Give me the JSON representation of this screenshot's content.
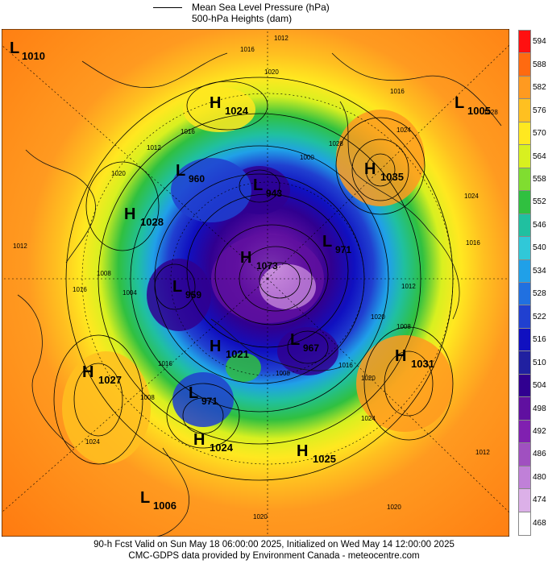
{
  "legend": {
    "line1": "Mean Sea Level Pressure (hPa)",
    "line2": "500-hPa Heights (dam)"
  },
  "colorbar": {
    "labels": [
      "594",
      "588",
      "582",
      "576",
      "570",
      "564",
      "558",
      "552",
      "546",
      "540",
      "534",
      "528",
      "522",
      "516",
      "510",
      "504",
      "498",
      "492",
      "486",
      "480",
      "474",
      "468"
    ],
    "colors": [
      "#ff1010",
      "#ff6a10",
      "#ff9a20",
      "#ffc020",
      "#ffe820",
      "#d8f020",
      "#80dd30",
      "#30c040",
      "#20c0a0",
      "#30c8d8",
      "#20a0e8",
      "#2070e0",
      "#2040d0",
      "#1010c0",
      "#2020a0",
      "#300090",
      "#6010a0",
      "#8020b0",
      "#a050c0",
      "#c080d8",
      "#dcb0e8",
      "#ffffff"
    ]
  },
  "systems": [
    {
      "type": "L",
      "value": "1010"
    },
    {
      "type": "H",
      "value": "1024"
    },
    {
      "type": "L",
      "value": "1005"
    },
    {
      "type": "H",
      "value": "1035"
    },
    {
      "type": "L",
      "value": "960"
    },
    {
      "type": "L",
      "value": "943"
    },
    {
      "type": "H",
      "value": "1028"
    },
    {
      "type": "L",
      "value": "971"
    },
    {
      "type": "H",
      "value": "1073"
    },
    {
      "type": "L",
      "value": "959"
    },
    {
      "type": "L",
      "value": "967"
    },
    {
      "type": "H",
      "value": "1021"
    },
    {
      "type": "H",
      "value": "1027"
    },
    {
      "type": "H",
      "value": "1031"
    },
    {
      "type": "L",
      "value": "971"
    },
    {
      "type": "H",
      "value": "1024"
    },
    {
      "type": "H",
      "value": "1025"
    },
    {
      "type": "L",
      "value": "1006"
    }
  ],
  "contour_labels": [
    "1012",
    "1016",
    "1020",
    "1016",
    "1012",
    "1024",
    "1028",
    "1016",
    "1012",
    "1020",
    "1024",
    "1000",
    "1016",
    "1028",
    "1012",
    "1008",
    "1004",
    "1016",
    "1020",
    "1008",
    "1016",
    "1020",
    "1024",
    "1008",
    "1016",
    "1024",
    "1012",
    "1020",
    "1008",
    "1020"
  ],
  "footer": {
    "line1": "90-h Fcst Valid on Sun May 18 06:00:00 2025, Initialized on Wed May 14 12:00:00 2025",
    "line2": "CMC-GDPS data provided by Environment Canada - meteocentre.com"
  }
}
